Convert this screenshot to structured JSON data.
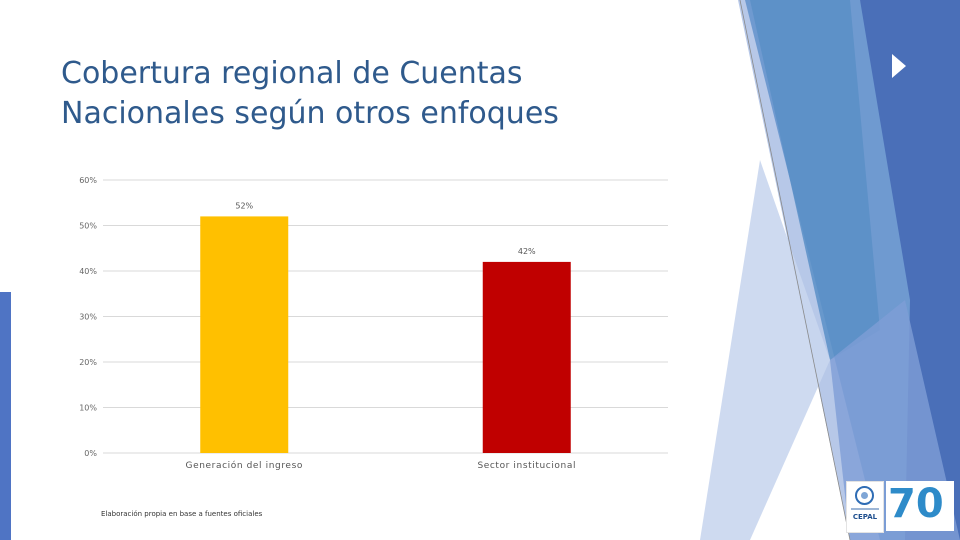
{
  "slide": {
    "title_line1": "Cobertura regional de Cuentas",
    "title_line2": "Nacionales según otros enfoques",
    "source_note": "Elaboración propia en base a fuentes oficiales"
  },
  "logos": {
    "un_org": "CEPAL",
    "anniversary": "70"
  },
  "colors": {
    "title": "#2f5a8c",
    "bar_gold": "#FFC000",
    "bar_red": "#C00000",
    "accent_blue": "#4f74c4"
  },
  "chart_data": {
    "type": "bar",
    "categories": [
      "Generación del ingreso",
      "Sector institucional"
    ],
    "values": [
      0.52,
      0.42
    ],
    "data_labels": [
      "52%",
      "42%"
    ],
    "bar_colors": [
      "#FFC000",
      "#C00000"
    ],
    "ylim": [
      0,
      0.6
    ],
    "yticks": [
      0,
      0.1,
      0.2,
      0.3,
      0.4,
      0.5,
      0.6
    ],
    "ytick_labels": [
      "0%",
      "10%",
      "20%",
      "30%",
      "40%",
      "50%",
      "60%"
    ],
    "grid": true,
    "legend": "none",
    "title": "",
    "xlabel": "",
    "ylabel": ""
  }
}
